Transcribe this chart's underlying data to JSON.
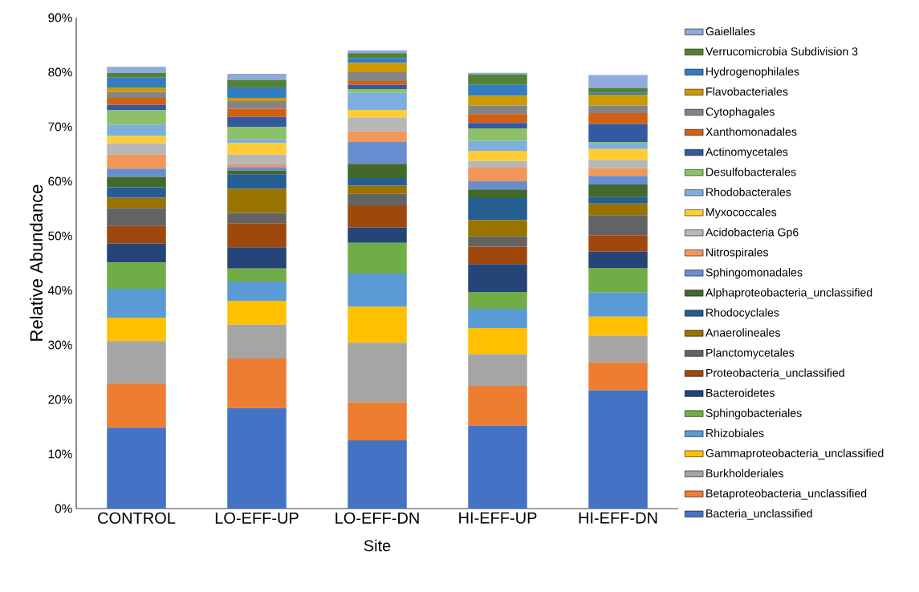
{
  "chart_data": {
    "type": "bar",
    "stacked": true,
    "xlabel": "Site",
    "ylabel": "Relative Abundance",
    "legend": "right",
    "categories": [
      "CONTROL",
      "LO-EFF-UP",
      "LO-EFF-DN",
      "HI-EFF-UP",
      "HI-EFF-DN"
    ],
    "ylim": [
      0,
      90
    ],
    "yticks": [
      {
        "value": 0,
        "label": "0%"
      },
      {
        "value": 10,
        "label": "10%"
      },
      {
        "value": 20,
        "label": "20%"
      },
      {
        "value": 30,
        "label": "30%"
      },
      {
        "value": 40,
        "label": "40%"
      },
      {
        "value": 50,
        "label": "50%"
      },
      {
        "value": 60,
        "label": "60%"
      },
      {
        "value": 70,
        "label": "70%"
      },
      {
        "value": 80,
        "label": "80%"
      },
      {
        "value": 90,
        "label": "90%"
      }
    ],
    "series": [
      {
        "name": "Bacteria_unclassified",
        "color": "#4472c4",
        "values": [
          14.8,
          18.4,
          12.5,
          15.2,
          21.7
        ]
      },
      {
        "name": "Betaproteobacteria_unclassified",
        "color": "#ed7d31",
        "values": [
          8.1,
          9.1,
          7.0,
          7.3,
          5.1
        ]
      },
      {
        "name": "Burkholderiales",
        "color": "#a5a5a5",
        "values": [
          7.8,
          6.2,
          10.9,
          5.8,
          4.9
        ]
      },
      {
        "name": "Gammaproteobacteria_unclassified",
        "color": "#ffc000",
        "values": [
          4.3,
          4.4,
          6.6,
          4.8,
          3.5
        ]
      },
      {
        "name": "Rhizobiales",
        "color": "#5b9bd5",
        "values": [
          5.3,
          3.5,
          6.1,
          3.5,
          4.4
        ]
      },
      {
        "name": "Sphingobacteriales",
        "color": "#70ad47",
        "values": [
          4.8,
          2.4,
          5.6,
          3.1,
          4.5
        ]
      },
      {
        "name": "Bacteroidetes",
        "color": "#264478",
        "values": [
          3.5,
          3.9,
          2.8,
          5.1,
          3.0
        ]
      },
      {
        "name": "Proteobacteria_unclassified",
        "color": "#9e480e",
        "values": [
          3.2,
          4.4,
          4.1,
          3.2,
          3.0
        ]
      },
      {
        "name": "Planctomycetales",
        "color": "#636363",
        "values": [
          3.3,
          1.9,
          2.1,
          1.9,
          3.7
        ]
      },
      {
        "name": "Anaerolineales",
        "color": "#997300",
        "values": [
          1.9,
          4.4,
          1.5,
          3.0,
          2.1
        ]
      },
      {
        "name": "Rhodocyclales",
        "color": "#255e91",
        "values": [
          1.9,
          2.7,
          1.4,
          4.0,
          1.2
        ]
      },
      {
        "name": "Alphaproteobacteria_unclassified",
        "color": "#43682b",
        "values": [
          1.9,
          0.7,
          2.6,
          1.6,
          2.3
        ]
      },
      {
        "name": "Sphingomonadales",
        "color": "#698ed0",
        "values": [
          1.5,
          0.6,
          4.0,
          1.5,
          1.6
        ]
      },
      {
        "name": "Nitrospirales",
        "color": "#f1975a",
        "values": [
          2.6,
          0.5,
          2.0,
          2.5,
          1.4
        ]
      },
      {
        "name": "Acidobacteria Gp6",
        "color": "#b7b7b7",
        "values": [
          2.1,
          1.8,
          2.5,
          1.2,
          1.5
        ]
      },
      {
        "name": "Myxococcales",
        "color": "#ffcd33",
        "values": [
          1.3,
          2.1,
          1.4,
          1.9,
          2.0
        ]
      },
      {
        "name": "Rhodobacterales",
        "color": "#7cafdd",
        "values": [
          2.1,
          0.7,
          3.1,
          1.8,
          1.0
        ]
      },
      {
        "name": "Desulfobacterales",
        "color": "#8cc168",
        "values": [
          2.6,
          2.3,
          0.7,
          2.3,
          0.3
        ]
      },
      {
        "name": "Actinomycetales",
        "color": "#335aa1",
        "values": [
          1.0,
          1.8,
          0.8,
          1.0,
          3.3
        ]
      },
      {
        "name": "Xanthomonadales",
        "color": "#d26012",
        "values": [
          1.3,
          1.5,
          0.7,
          1.6,
          2.0
        ]
      },
      {
        "name": "Cytophagales",
        "color": "#848484",
        "values": [
          1.1,
          1.4,
          1.6,
          1.6,
          1.4
        ]
      },
      {
        "name": "Flavobacteriales",
        "color": "#cc9a00",
        "values": [
          0.8,
          0.6,
          1.7,
          1.8,
          2.0
        ]
      },
      {
        "name": "Hydrogenophilales",
        "color": "#327dc2",
        "values": [
          1.8,
          1.9,
          0.9,
          2.0,
          0.3
        ]
      },
      {
        "name": "Verrucomicrobia Subdivision 3",
        "color": "#548235",
        "values": [
          0.9,
          1.4,
          0.9,
          1.9,
          0.9
        ]
      },
      {
        "name": "Gaiellales",
        "color": "#8faadc",
        "values": [
          1.1,
          1.1,
          0.5,
          0.3,
          2.4
        ]
      }
    ]
  }
}
